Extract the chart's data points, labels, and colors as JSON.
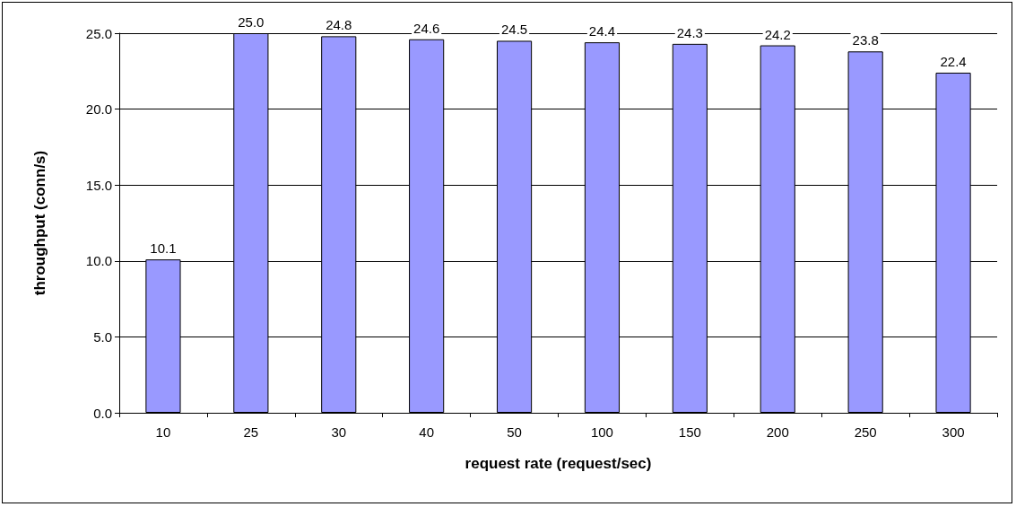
{
  "chart_data": {
    "type": "bar",
    "xlabel": "request rate (request/sec)",
    "ylabel": "throughput (conn/s)",
    "categories": [
      "10",
      "25",
      "30",
      "40",
      "50",
      "100",
      "150",
      "200",
      "250",
      "300"
    ],
    "values": [
      10.1,
      25.0,
      24.8,
      24.6,
      24.5,
      24.4,
      24.3,
      24.2,
      23.8,
      22.4
    ],
    "value_labels": [
      "10.1",
      "25.0",
      "24.8",
      "24.6",
      "24.5",
      "24.4",
      "24.3",
      "24.2",
      "23.8",
      "22.4"
    ],
    "color": "#9999ff",
    "ylim": [
      0,
      25
    ],
    "yticks": [
      {
        "value": 0,
        "label": "0.0"
      },
      {
        "value": 5,
        "label": "5.0"
      },
      {
        "value": 10,
        "label": "10.0"
      },
      {
        "value": 15,
        "label": "15.0"
      },
      {
        "value": 20,
        "label": "20.0"
      },
      {
        "value": 25,
        "label": "25.0"
      }
    ],
    "grid": "y"
  }
}
